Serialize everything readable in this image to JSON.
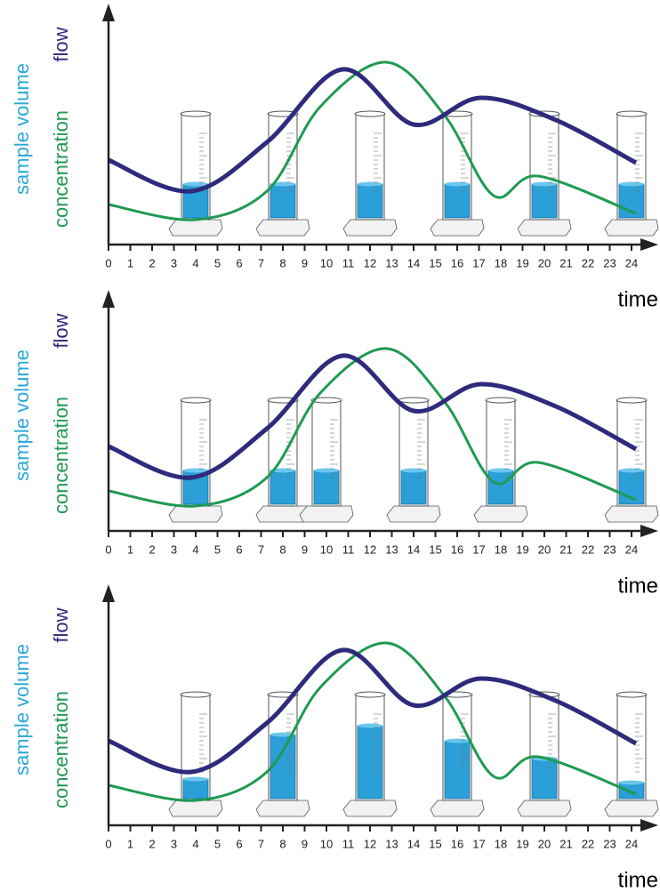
{
  "panels": [
    {
      "flow_label": "flow",
      "sample_label": "sample volume",
      "concentration_label": "concentration",
      "x_label": "time",
      "xticks": [
        0,
        1,
        2,
        3,
        4,
        5,
        6,
        7,
        8,
        9,
        10,
        11,
        12,
        13,
        14,
        15,
        16,
        17,
        18,
        19,
        20,
        21,
        22,
        23,
        24
      ]
    },
    {
      "flow_label": "flow",
      "sample_label": "sample volume",
      "concentration_label": "concentration",
      "x_label": "time",
      "xticks": [
        0,
        1,
        2,
        3,
        4,
        5,
        6,
        7,
        8,
        9,
        10,
        11,
        12,
        13,
        14,
        15,
        16,
        17,
        18,
        19,
        20,
        21,
        22,
        23,
        24
      ]
    },
    {
      "flow_label": "flow",
      "sample_label": "sample volume",
      "concentration_label": "concentration",
      "x_label": "time",
      "xticks": [
        0,
        1,
        2,
        3,
        4,
        5,
        6,
        7,
        8,
        9,
        10,
        11,
        12,
        13,
        14,
        15,
        16,
        17,
        18,
        19,
        20,
        21,
        22,
        23,
        24
      ]
    }
  ]
}
